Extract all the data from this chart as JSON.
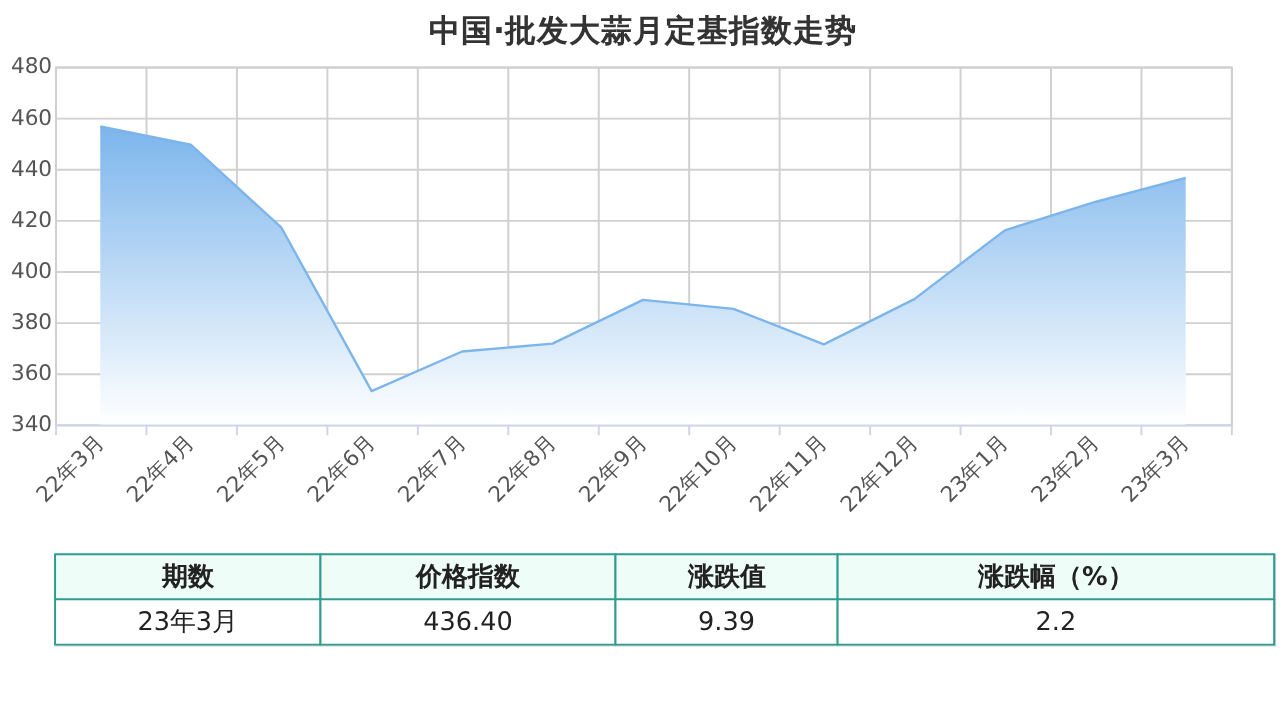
{
  "chart_data": {
    "type": "area",
    "title": "中国·批发大蒜月定基指数走势",
    "categories": [
      "22年3月",
      "22年4月",
      "22年5月",
      "22年6月",
      "22年7月",
      "22年8月",
      "22年9月",
      "22年10月",
      "22年11月",
      "22年12月",
      "23年1月",
      "23年2月",
      "23年3月"
    ],
    "values": [
      456.6,
      449.4,
      417.1,
      353.0,
      368.5,
      371.6,
      388.7,
      385.2,
      371.3,
      389.0,
      415.9,
      427.0,
      436.4
    ],
    "color": "#7cb5ec",
    "ylim": [
      340,
      480
    ],
    "yticks": [
      340,
      360,
      380,
      400,
      420,
      440,
      460,
      480
    ],
    "grid": true,
    "legend": false,
    "marker": "none",
    "annotations": [
      "期数",
      "价格指数",
      "涨跌值",
      "涨跌幅（%）",
      "23年3月",
      "436.40",
      "9.39",
      "2.2"
    ]
  }
}
